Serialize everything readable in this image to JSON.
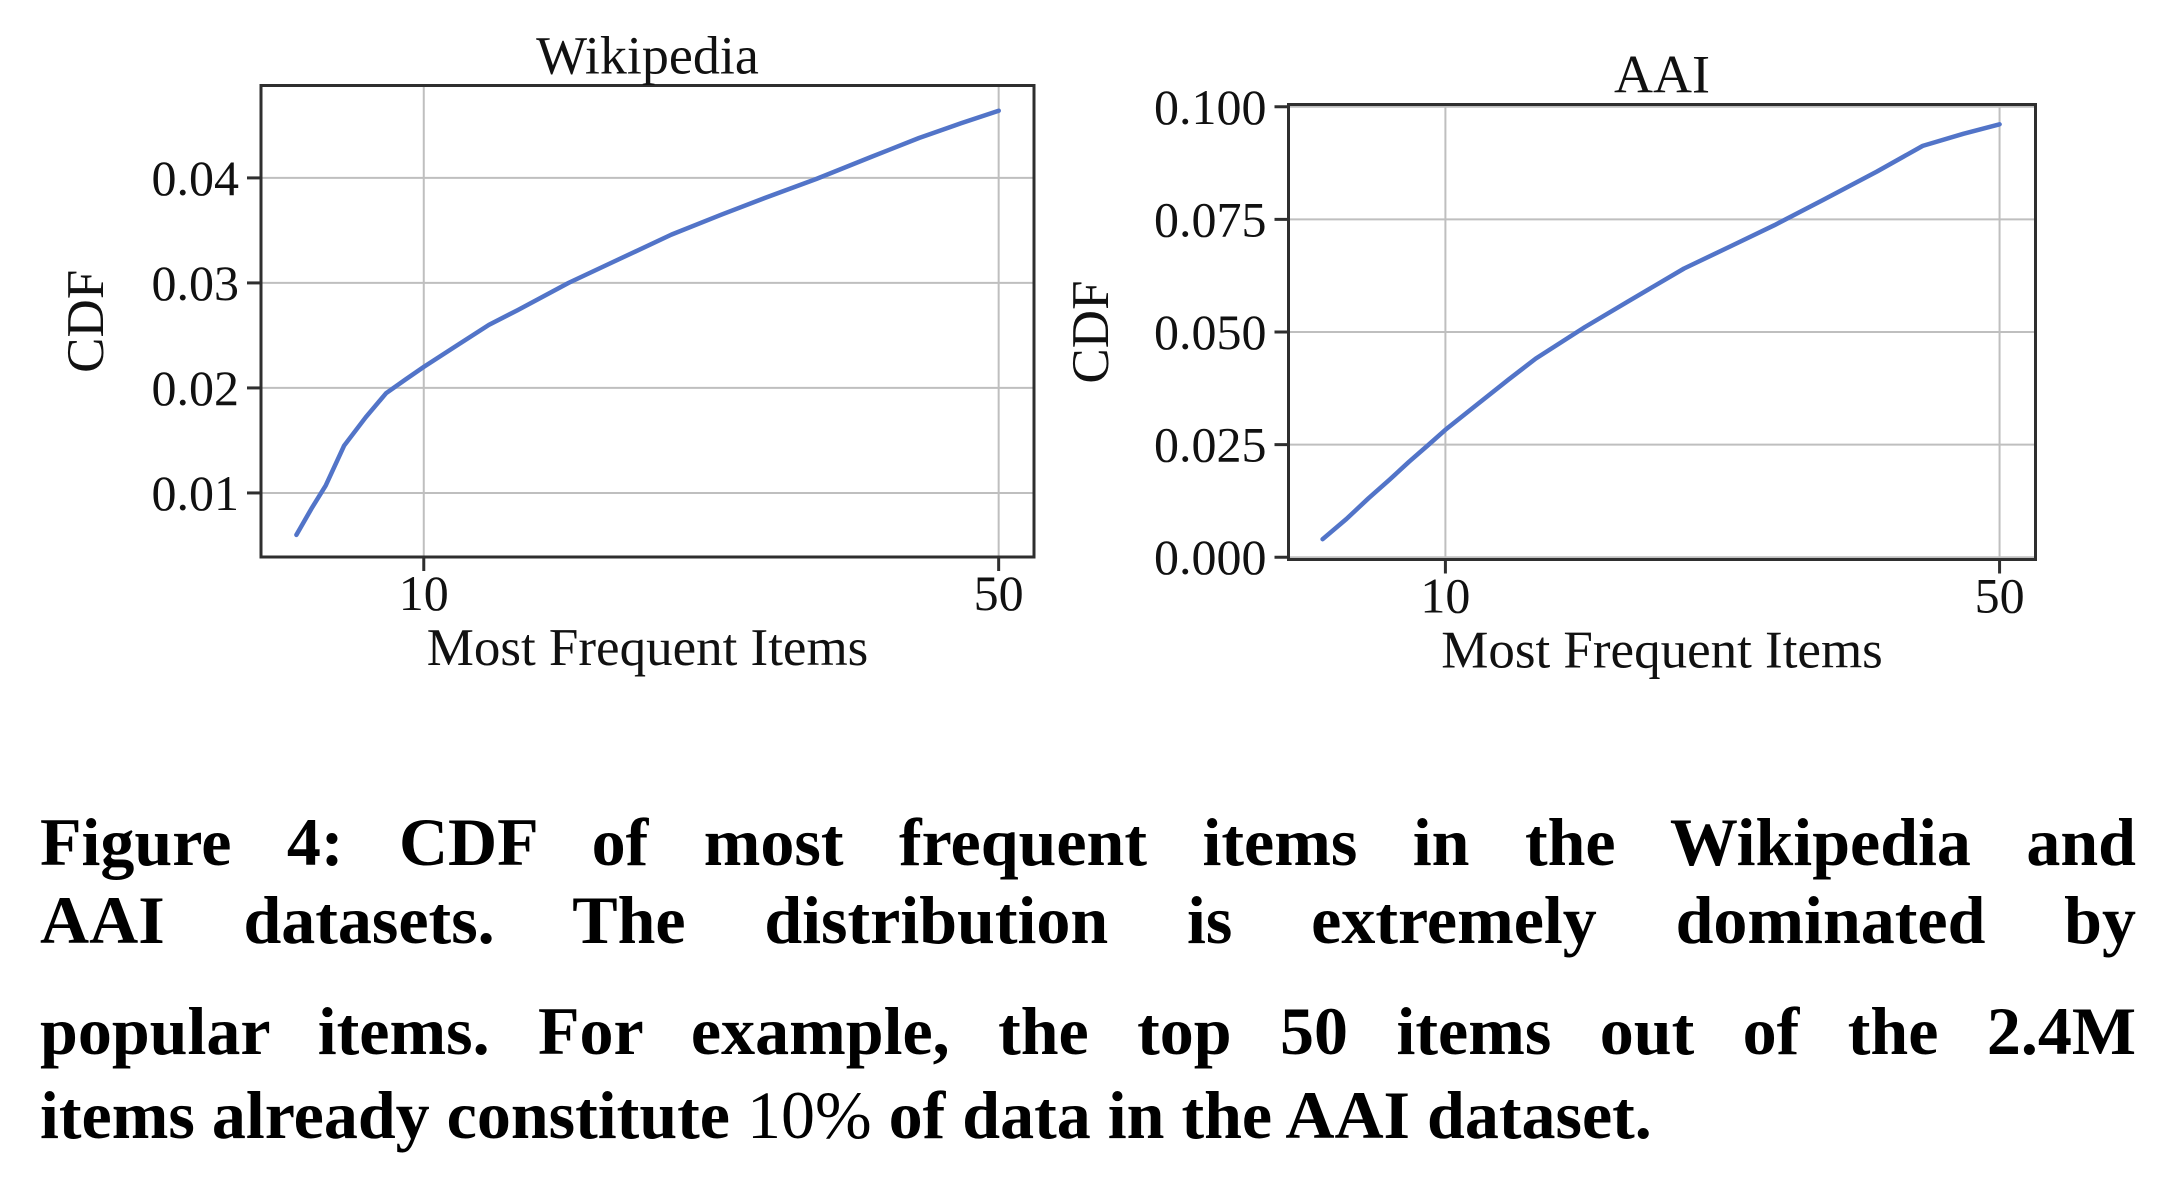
{
  "caption": {
    "line1": "Figure 4: CDF of most frequent items in the Wikipedia and",
    "line2": "AAI datasets. The distribution is extremely dominated by",
    "line3": "popular items. For example, the top 50 items out of the 2.4M",
    "line4": {
      "bold_start": "items already constitute ",
      "regular_mid": "10%",
      "bold_end": " of data in the AAI dataset."
    }
  },
  "chart_data": [
    {
      "type": "line",
      "title": "Wikipedia",
      "xlabel": "Most Frequent Items",
      "ylabel": "CDF",
      "xscale": "log",
      "grid": true,
      "legend": "none",
      "xlim": [
        6.34,
        55.2
      ],
      "ylim": [
        0.0039,
        0.0488
      ],
      "xticks": [
        10,
        50
      ],
      "xtick_labels": [
        "10",
        "50"
      ],
      "yticks": [
        0.01,
        0.02,
        0.03,
        0.04
      ],
      "ytick_labels": [
        "0.01",
        "0.02",
        "0.03",
        "0.04"
      ],
      "curve_color": "#5274c8",
      "series": [
        {
          "name": "CDF",
          "x": [
            7.0,
            7.3,
            7.6,
            8.0,
            8.5,
            9.0,
            9.5,
            10,
            11,
            12,
            13,
            15,
            17,
            20,
            23,
            26,
            30,
            35,
            40,
            45,
            50
          ],
          "y": [
            0.006,
            0.0085,
            0.0107,
            0.0145,
            0.0172,
            0.0195,
            0.0208,
            0.022,
            0.0241,
            0.026,
            0.0274,
            0.03,
            0.032,
            0.0346,
            0.0365,
            0.0381,
            0.0399,
            0.042,
            0.0438,
            0.0452,
            0.0464
          ]
        }
      ]
    },
    {
      "type": "line",
      "title": "AAI",
      "xlabel": "Most Frequent Items",
      "ylabel": "CDF",
      "xscale": "log",
      "grid": true,
      "legend": "none",
      "xlim": [
        6.34,
        55.5
      ],
      "ylim": [
        -0.0005,
        0.1005
      ],
      "xticks": [
        10,
        50
      ],
      "xtick_labels": [
        "10",
        "50"
      ],
      "yticks": [
        0.0,
        0.025,
        0.05,
        0.075,
        0.1
      ],
      "ytick_labels": [
        "0.000",
        "0.025",
        "0.050",
        "0.075",
        "0.100"
      ],
      "curve_color": "#5274c8",
      "series": [
        {
          "name": "CDF",
          "x": [
            7.0,
            7.5,
            8.0,
            8.5,
            9.0,
            9.5,
            10,
            11,
            12,
            13,
            15,
            17,
            20,
            23,
            26,
            30,
            35,
            40,
            45,
            50
          ],
          "y": [
            0.004,
            0.0085,
            0.0131,
            0.0172,
            0.0212,
            0.0248,
            0.0283,
            0.0341,
            0.0394,
            0.0441,
            0.0511,
            0.0568,
            0.0641,
            0.0692,
            0.0737,
            0.0794,
            0.0856,
            0.0913,
            0.094,
            0.0961
          ]
        }
      ]
    }
  ]
}
